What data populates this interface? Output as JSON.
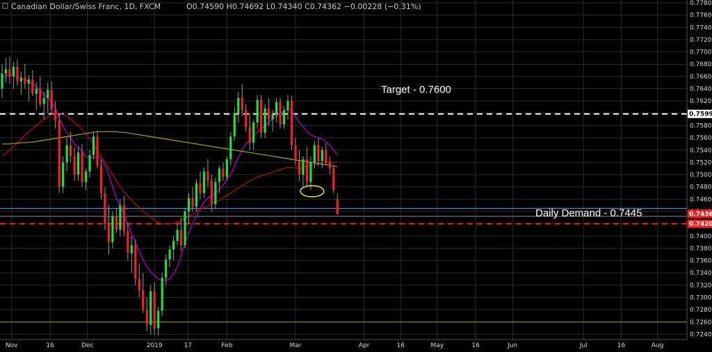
{
  "header": {
    "symbol": "Canadian Dollar/Swiss Franc, 1D, FXCM",
    "ohlc": "O0.74590 H0.74692 L0.74340 C0.74362 −0.00228 (−0.31%)"
  },
  "chart_data": {
    "type": "candlestick",
    "title": "Canadian Dollar/Swiss Franc, 1D, FXCM",
    "ylim": [
      0.7236,
      0.778
    ],
    "y_ticks": [
      "0.77800",
      "0.77600",
      "0.77400",
      "0.77200",
      "0.77000",
      "0.76800",
      "0.76600",
      "0.76400",
      "0.76200",
      "0.76000",
      "0.75800",
      "0.75600",
      "0.75400",
      "0.75200",
      "0.75000",
      "0.74800",
      "0.74600",
      "0.74400",
      "0.74200",
      "0.74000",
      "0.73800",
      "0.73600",
      "0.73400",
      "0.73200",
      "0.73000",
      "0.72800",
      "0.72600",
      "0.72400"
    ],
    "x_ticks": [
      "Nov",
      "16",
      "Dec",
      "2019",
      "17",
      "Feb",
      "Mar",
      "Apr",
      "16",
      "May",
      "16",
      "Jun",
      "Jul",
      "16",
      "Aug"
    ],
    "grid": true,
    "candles": [
      [
        0.764,
        0.768,
        0.7625,
        0.7665
      ],
      [
        0.7665,
        0.769,
        0.765,
        0.7672
      ],
      [
        0.7672,
        0.7692,
        0.7648,
        0.766
      ],
      [
        0.766,
        0.7684,
        0.764,
        0.7676
      ],
      [
        0.7676,
        0.7688,
        0.7645,
        0.7652
      ],
      [
        0.7652,
        0.7668,
        0.763,
        0.7658
      ],
      [
        0.7658,
        0.768,
        0.764,
        0.7648
      ],
      [
        0.7648,
        0.7662,
        0.762,
        0.7655
      ],
      [
        0.7655,
        0.767,
        0.7628,
        0.7632
      ],
      [
        0.7632,
        0.765,
        0.7605,
        0.764
      ],
      [
        0.764,
        0.766,
        0.761,
        0.7615
      ],
      [
        0.7615,
        0.7635,
        0.759,
        0.7625
      ],
      [
        0.7625,
        0.765,
        0.76,
        0.7638
      ],
      [
        0.7638,
        0.7652,
        0.76,
        0.7606
      ],
      [
        0.7606,
        0.762,
        0.7575,
        0.7588
      ],
      [
        0.7588,
        0.76,
        0.747,
        0.748
      ],
      [
        0.748,
        0.753,
        0.747,
        0.752
      ],
      [
        0.752,
        0.756,
        0.7505,
        0.7548
      ],
      [
        0.7548,
        0.757,
        0.752,
        0.753
      ],
      [
        0.753,
        0.7545,
        0.749,
        0.75
      ],
      [
        0.75,
        0.7545,
        0.749,
        0.7536
      ],
      [
        0.7536,
        0.755,
        0.748,
        0.7488
      ],
      [
        0.7488,
        0.751,
        0.7475,
        0.7505
      ],
      [
        0.7505,
        0.754,
        0.7495,
        0.7532
      ],
      [
        0.7532,
        0.757,
        0.7525,
        0.7562
      ],
      [
        0.7562,
        0.7572,
        0.751,
        0.7515
      ],
      [
        0.7515,
        0.7525,
        0.746,
        0.747
      ],
      [
        0.747,
        0.748,
        0.741,
        0.742
      ],
      [
        0.742,
        0.745,
        0.737,
        0.739
      ],
      [
        0.739,
        0.744,
        0.738,
        0.7432
      ],
      [
        0.7432,
        0.7445,
        0.7405,
        0.741
      ],
      [
        0.741,
        0.746,
        0.74,
        0.745
      ],
      [
        0.745,
        0.7465,
        0.74,
        0.7408
      ],
      [
        0.7408,
        0.742,
        0.736,
        0.7372
      ],
      [
        0.7372,
        0.74,
        0.734,
        0.7385
      ],
      [
        0.7385,
        0.7395,
        0.732,
        0.733
      ],
      [
        0.733,
        0.7355,
        0.73,
        0.7312
      ],
      [
        0.7312,
        0.734,
        0.7275,
        0.728
      ],
      [
        0.728,
        0.73,
        0.7245,
        0.7255
      ],
      [
        0.7255,
        0.732,
        0.724,
        0.731
      ],
      [
        0.731,
        0.7325,
        0.724,
        0.725
      ],
      [
        0.725,
        0.7285,
        0.7238,
        0.7278
      ],
      [
        0.7278,
        0.734,
        0.727,
        0.7332
      ],
      [
        0.7332,
        0.737,
        0.732,
        0.7362
      ],
      [
        0.7362,
        0.7385,
        0.735,
        0.7378
      ],
      [
        0.7378,
        0.74,
        0.736,
        0.7392
      ],
      [
        0.7392,
        0.742,
        0.7385,
        0.741
      ],
      [
        0.741,
        0.743,
        0.7375,
        0.7385
      ],
      [
        0.7385,
        0.7445,
        0.738,
        0.744
      ],
      [
        0.744,
        0.747,
        0.742,
        0.7462
      ],
      [
        0.7462,
        0.748,
        0.744,
        0.7448
      ],
      [
        0.7448,
        0.7492,
        0.744,
        0.7486
      ],
      [
        0.7486,
        0.7505,
        0.746,
        0.747
      ],
      [
        0.747,
        0.7512,
        0.7462,
        0.7505
      ],
      [
        0.7505,
        0.7525,
        0.748,
        0.749
      ],
      [
        0.749,
        0.75,
        0.744,
        0.7452
      ],
      [
        0.7452,
        0.7495,
        0.7445,
        0.7488
      ],
      [
        0.7488,
        0.7515,
        0.747,
        0.751
      ],
      [
        0.751,
        0.752,
        0.749,
        0.7496
      ],
      [
        0.7496,
        0.753,
        0.749,
        0.7525
      ],
      [
        0.7525,
        0.757,
        0.7515,
        0.7562
      ],
      [
        0.7562,
        0.761,
        0.7555,
        0.76
      ],
      [
        0.76,
        0.7635,
        0.7585,
        0.7625
      ],
      [
        0.7625,
        0.7648,
        0.7595,
        0.7605
      ],
      [
        0.7605,
        0.7615,
        0.757,
        0.7578
      ],
      [
        0.7578,
        0.76,
        0.754,
        0.7552
      ],
      [
        0.7552,
        0.759,
        0.754,
        0.7585
      ],
      [
        0.7585,
        0.763,
        0.7575,
        0.7622
      ],
      [
        0.7622,
        0.763,
        0.756,
        0.7568
      ],
      [
        0.7568,
        0.7615,
        0.756,
        0.7608
      ],
      [
        0.7608,
        0.7625,
        0.758,
        0.759
      ],
      [
        0.759,
        0.7605,
        0.757,
        0.7598
      ],
      [
        0.7598,
        0.7625,
        0.7585,
        0.7618
      ],
      [
        0.7618,
        0.7625,
        0.7575,
        0.7582
      ],
      [
        0.7582,
        0.7612,
        0.7575,
        0.7605
      ],
      [
        0.7605,
        0.763,
        0.759,
        0.762
      ],
      [
        0.762,
        0.7628,
        0.754,
        0.7548
      ],
      [
        0.7548,
        0.756,
        0.7515,
        0.7522
      ],
      [
        0.7522,
        0.754,
        0.749,
        0.75
      ],
      [
        0.75,
        0.753,
        0.748,
        0.7525
      ],
      [
        0.7525,
        0.7545,
        0.748,
        0.7488
      ],
      [
        0.7488,
        0.753,
        0.7475,
        0.752
      ],
      [
        0.752,
        0.7555,
        0.751,
        0.7548
      ],
      [
        0.7548,
        0.756,
        0.7515,
        0.7522
      ],
      [
        0.7522,
        0.7545,
        0.751,
        0.754
      ],
      [
        0.754,
        0.7552,
        0.7515,
        0.752
      ],
      [
        0.752,
        0.753,
        0.75,
        0.751
      ],
      [
        0.751,
        0.7515,
        0.747,
        0.7475
      ],
      [
        0.7459,
        0.74692,
        0.7434,
        0.74362
      ]
    ],
    "first_candle_x_label": "Nov",
    "moving_averages": [
      {
        "color": "#b000c8",
        "values": [
          0.766,
          0.7662,
          0.7663,
          0.7661,
          0.7659,
          0.7657,
          0.7655,
          0.7652,
          0.7648,
          0.7643,
          0.7637,
          0.763,
          0.7625,
          0.7618,
          0.7608,
          0.7592,
          0.7578,
          0.7568,
          0.756,
          0.755,
          0.7545,
          0.7538,
          0.753,
          0.7527,
          0.7528,
          0.753,
          0.7526,
          0.7515,
          0.75,
          0.748,
          0.7462,
          0.7448,
          0.7435,
          0.742,
          0.7404,
          0.739,
          0.7375,
          0.7362,
          0.735,
          0.7342,
          0.7336,
          0.733,
          0.7328,
          0.7328,
          0.733,
          0.7338,
          0.735,
          0.7368,
          0.7388,
          0.7405,
          0.742,
          0.7432,
          0.7444,
          0.7455,
          0.7462,
          0.7466,
          0.747,
          0.7476,
          0.7483,
          0.7492,
          0.75,
          0.7514,
          0.7528,
          0.754,
          0.755,
          0.7556,
          0.7562,
          0.757,
          0.7575,
          0.758,
          0.7585,
          0.759,
          0.7596,
          0.76,
          0.7603,
          0.7606,
          0.7603,
          0.7595,
          0.7585,
          0.7578,
          0.757,
          0.7565,
          0.7562,
          0.756,
          0.7558,
          0.7554,
          0.7548,
          0.754,
          0.7533
        ]
      },
      {
        "color": "#b01010",
        "values": [
          0.753,
          0.7535,
          0.754,
          0.7546,
          0.7552,
          0.7558,
          0.7564,
          0.757,
          0.7575,
          0.758,
          0.7585,
          0.759,
          0.7594,
          0.7598,
          0.76,
          0.76,
          0.7598,
          0.7595,
          0.759,
          0.7585,
          0.758,
          0.7574,
          0.7566,
          0.7558,
          0.755,
          0.754,
          0.753,
          0.752,
          0.751,
          0.75,
          0.749,
          0.748,
          0.7472,
          0.7465,
          0.7458,
          0.7452,
          0.7446,
          0.744,
          0.7435,
          0.743,
          0.7426,
          0.7422,
          0.742,
          0.7419,
          0.742,
          0.7421,
          0.7423,
          0.7425,
          0.7428,
          0.7432,
          0.7436,
          0.744,
          0.7443,
          0.7446,
          0.7449,
          0.7452,
          0.7455,
          0.7458,
          0.7462,
          0.7466,
          0.747,
          0.7474,
          0.7478,
          0.7482,
          0.7486,
          0.749,
          0.7493,
          0.7496,
          0.7498,
          0.75,
          0.7502,
          0.7504,
          0.7506,
          0.7508,
          0.751,
          0.7512,
          0.7512,
          0.7511,
          0.751,
          0.7512,
          0.7514,
          0.7515,
          0.7516,
          0.7518,
          0.7519,
          0.752,
          0.752,
          0.752,
          0.7521
        ]
      },
      {
        "color": "#a8a800",
        "values": [
          0.755,
          0.755,
          0.755,
          0.7551,
          0.7551,
          0.7552,
          0.7552,
          0.7553,
          0.7553,
          0.7554,
          0.7555,
          0.7556,
          0.7557,
          0.7558,
          0.7559,
          0.756,
          0.7561,
          0.7562,
          0.7563,
          0.7564,
          0.7565,
          0.7566,
          0.7567,
          0.7568,
          0.7569,
          0.757,
          0.757,
          0.757,
          0.757,
          0.757,
          0.757,
          0.7569,
          0.7569,
          0.7568,
          0.7567,
          0.7566,
          0.7565,
          0.7564,
          0.7563,
          0.7562,
          0.7561,
          0.756,
          0.7559,
          0.7558,
          0.7557,
          0.7556,
          0.7555,
          0.7554,
          0.7553,
          0.7552,
          0.7551,
          0.755,
          0.7549,
          0.7548,
          0.7547,
          0.7546,
          0.7545,
          0.7544,
          0.7543,
          0.7542,
          0.7541,
          0.754,
          0.7539,
          0.7538,
          0.7537,
          0.7536,
          0.7535,
          0.7534,
          0.7533,
          0.7532,
          0.7531,
          0.753,
          0.7529,
          0.7528,
          0.7527,
          0.7526,
          0.7525,
          0.7524,
          0.7523,
          0.7522,
          0.7521,
          0.752,
          0.7519,
          0.7518,
          0.7517,
          0.7516,
          0.7515,
          0.7514,
          0.7513
        ]
      }
    ],
    "horizontal_lines": [
      {
        "value": 0.7599,
        "color": "#ffffff",
        "style": "dashed",
        "label": "0.75990"
      },
      {
        "value": 0.7445,
        "color": "#6aa0ff",
        "style": "solid"
      },
      {
        "value": 0.7432,
        "color": "#8888aa",
        "style": "solid"
      },
      {
        "value": 0.742,
        "color": "#ff2020",
        "style": "dashed",
        "label": "0.74203"
      },
      {
        "value": 0.726,
        "color": "#9ab000",
        "style": "solid"
      }
    ],
    "current_price_label": "0.74362",
    "annotations": [
      {
        "text": "Target - 0.7600",
        "value": 0.7639
      },
      {
        "text": "Daily Demand - 0.7445",
        "value": 0.7438
      }
    ],
    "highlight_ellipse": {
      "candle_index": 81,
      "value": 0.7473
    }
  },
  "colors": {
    "up": "#22dd44",
    "down": "#ee2222",
    "doji": "#33bbdd",
    "grid": "#2a2a2a"
  }
}
